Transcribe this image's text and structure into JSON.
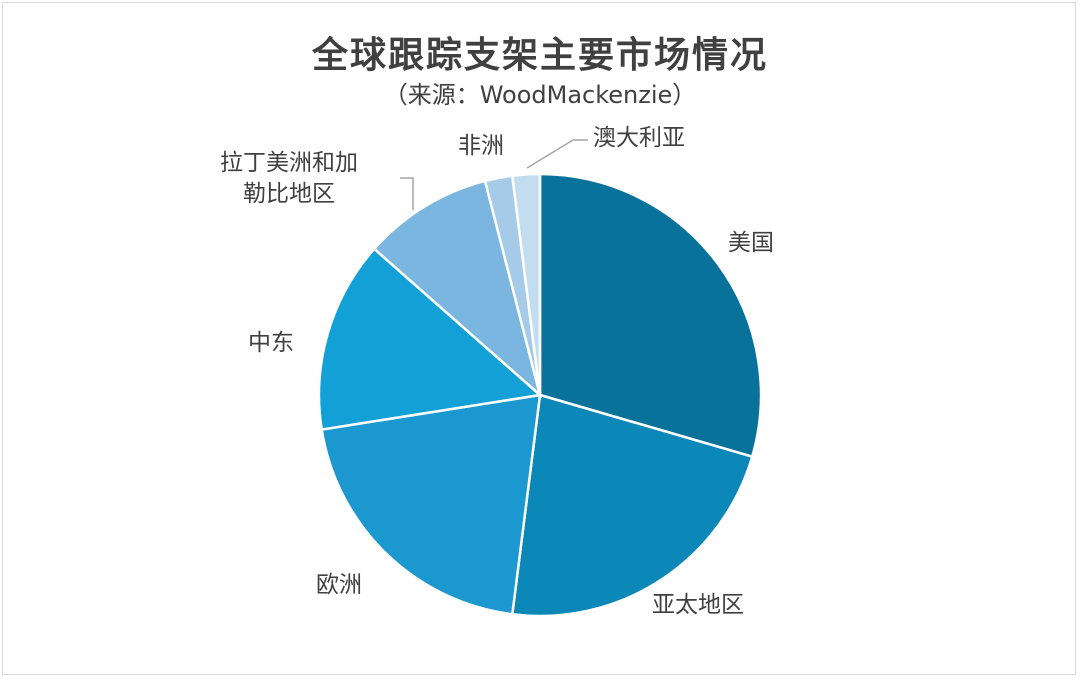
{
  "chart_data": {
    "type": "pie",
    "title": "全球跟踪支架主要市场情况",
    "subtitle": "（来源：WoodMackenzie）",
    "slices": [
      {
        "label": "美国",
        "value": 29.5,
        "color": "#08729a"
      },
      {
        "label": "亚太地区",
        "value": 22.5,
        "color": "#0b87b8"
      },
      {
        "label": "欧洲",
        "value": 20.5,
        "color": "#1b98cf"
      },
      {
        "label": "中东",
        "value": 14.0,
        "color": "#12a0d6"
      },
      {
        "label": "拉丁美洲和加勒比地区",
        "value": 9.5,
        "color": "#7ab6df"
      },
      {
        "label": "非洲",
        "value": 2.0,
        "color": "#a5cbe8"
      },
      {
        "label": "澳大利亚",
        "value": 2.0,
        "color": "#c3dcf0"
      }
    ]
  }
}
